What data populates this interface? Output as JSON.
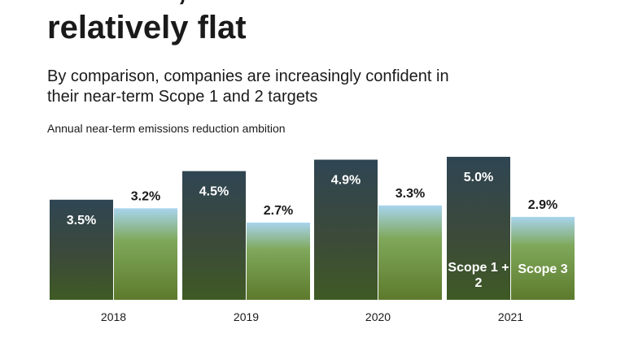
{
  "chart_data": {
    "type": "bar",
    "title": "however, have remained relatively flat",
    "subtitle": "By comparison, companies are increasingly confident in their near-term Scope 1 and 2 targets",
    "y_label": "Annual near-term emissions reduction ambition",
    "categories": [
      "2018",
      "2019",
      "2020",
      "2021"
    ],
    "series": [
      {
        "name": "Scope 1 + 2",
        "color": "#2f4553",
        "values": [
          3.5,
          4.5,
          4.9,
          5.0
        ],
        "value_labels": [
          "3.5%",
          "4.5%",
          "4.9%",
          "5.0%"
        ]
      },
      {
        "name": "Scope 3",
        "color": "#a8d4ee",
        "values": [
          3.2,
          2.7,
          3.3,
          2.9
        ],
        "value_labels": [
          "3.2%",
          "2.7%",
          "3.3%",
          "2.9%"
        ]
      }
    ]
  }
}
